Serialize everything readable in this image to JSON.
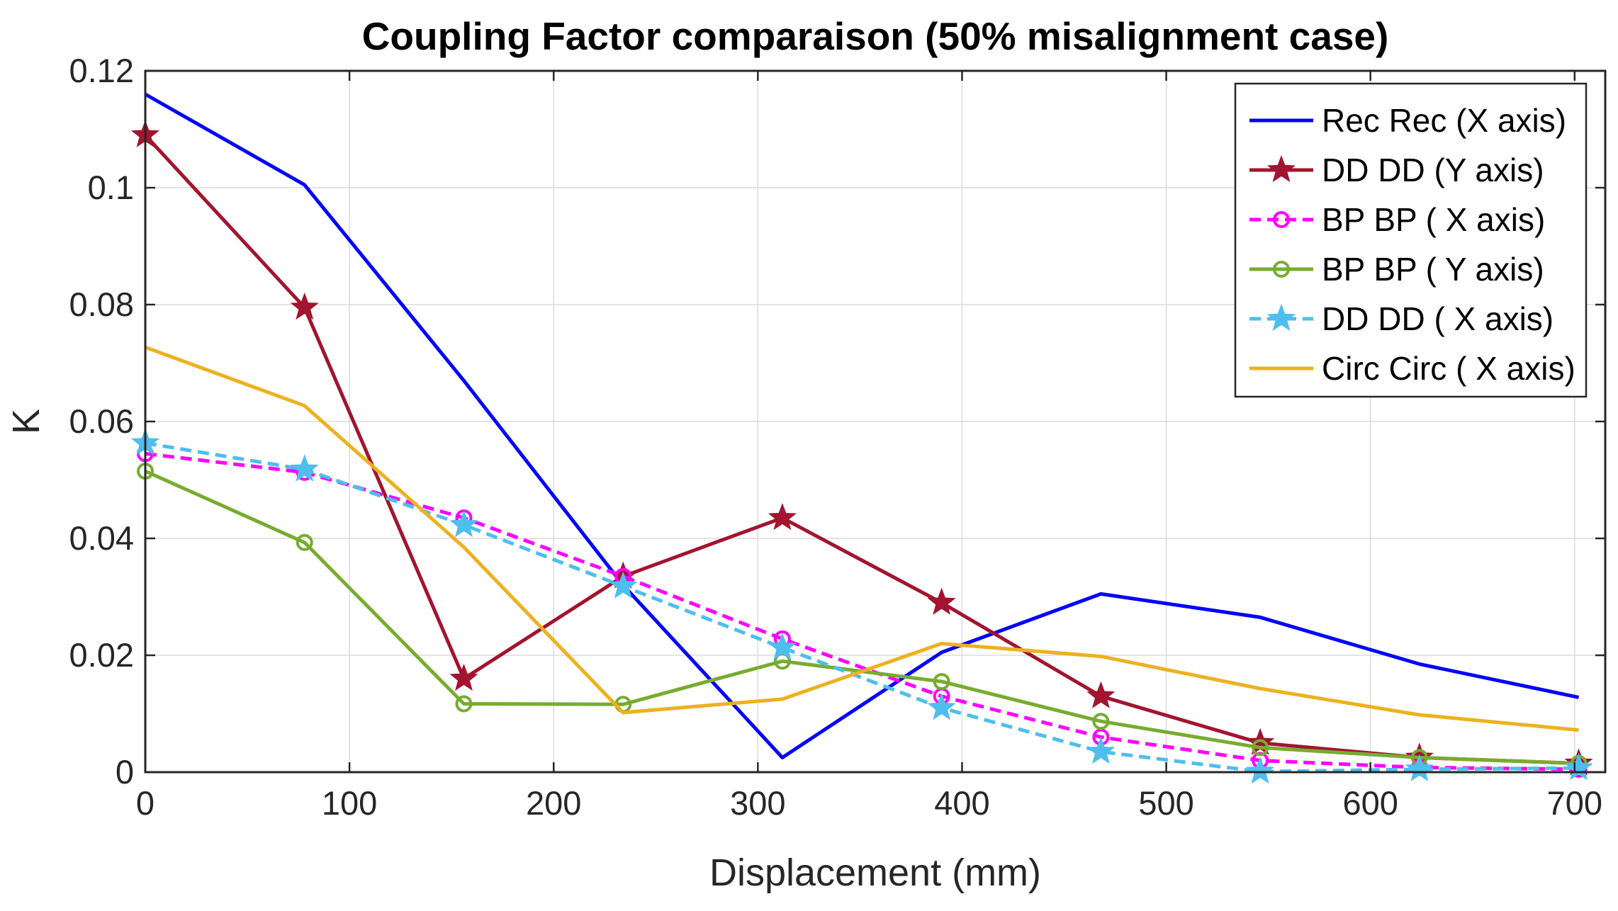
{
  "chart_data": {
    "type": "line",
    "title": "Coupling Factor comparaison (50% misalignment case)",
    "xlabel": "Displacement (mm)",
    "ylabel": "K",
    "xlim": [
      0,
      715
    ],
    "ylim": [
      0,
      0.12
    ],
    "xticks": [
      0,
      100,
      200,
      300,
      400,
      500,
      600,
      700
    ],
    "xtick_labels": [
      "0",
      "100",
      "200",
      "300",
      "400",
      "500",
      "600",
      "700"
    ],
    "yticks": [
      0,
      0.02,
      0.04,
      0.06,
      0.08,
      0.1,
      0.12
    ],
    "ytick_labels": [
      "0",
      "0.02",
      "0.04",
      "0.06",
      "0.08",
      "0.1",
      "0.12"
    ],
    "grid": true,
    "legend_position": "top-right",
    "x": [
      0,
      78,
      156,
      234,
      312,
      390,
      468,
      546,
      624,
      702
    ],
    "series": [
      {
        "name": "Rec Rec (X axis)",
        "color": "#0000FF",
        "line_style": "solid",
        "marker": "none",
        "values": [
          0.116,
          0.1005,
          0.067,
          0.032,
          0.0025,
          0.0205,
          0.0305,
          0.0265,
          0.0185,
          0.0128
        ]
      },
      {
        "name": "DD DD (Y axis)",
        "color": "#A2142F",
        "line_style": "solid",
        "marker": "star",
        "values": [
          0.109,
          0.0795,
          0.016,
          0.0335,
          0.0435,
          0.029,
          0.013,
          0.005,
          0.0025,
          0.0015
        ]
      },
      {
        "name": "BP BP ( X axis)",
        "color": "#FF00FF",
        "line_style": "dashed",
        "marker": "circle",
        "values": [
          0.0545,
          0.0513,
          0.0435,
          0.0335,
          0.0228,
          0.013,
          0.006,
          0.002,
          0.0008,
          0.0005
        ]
      },
      {
        "name": "BP BP ( Y axis)",
        "color": "#77AC30",
        "line_style": "solid",
        "marker": "circle",
        "values": [
          0.0515,
          0.0393,
          0.0117,
          0.0116,
          0.019,
          0.0155,
          0.0087,
          0.0042,
          0.0025,
          0.0015
        ]
      },
      {
        "name": "DD DD ( X axis)",
        "color": "#4DBEEE",
        "line_style": "dashed",
        "marker": "star",
        "values": [
          0.0563,
          0.0518,
          0.0423,
          0.0318,
          0.0213,
          0.011,
          0.0035,
          0.0001,
          0.0005,
          0.0007
        ]
      },
      {
        "name": "Circ Circ ( X axis)",
        "color": "#EDB120",
        "line_style": "solid",
        "marker": "none",
        "values": [
          0.0727,
          0.0627,
          0.0385,
          0.0102,
          0.0125,
          0.022,
          0.0198,
          0.0143,
          0.0098,
          0.0072
        ]
      }
    ]
  }
}
